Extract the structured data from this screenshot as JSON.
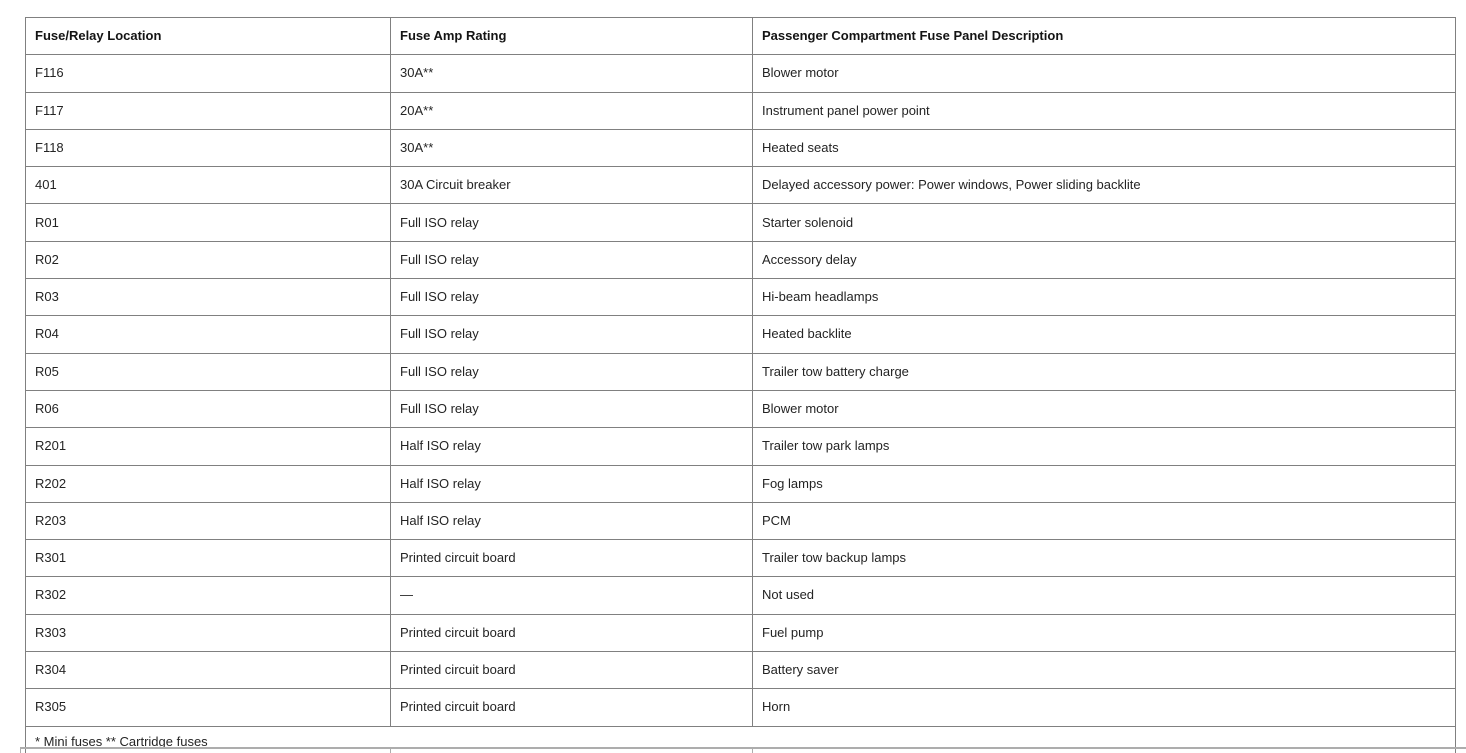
{
  "table": {
    "columns": [
      "Fuse/Relay Location",
      "Fuse Amp Rating",
      "Passenger Compartment Fuse Panel Description"
    ],
    "rows": [
      [
        "F116",
        "30A**",
        "Blower motor"
      ],
      [
        "F117",
        "20A**",
        "Instrument panel power point"
      ],
      [
        "F118",
        "30A**",
        "Heated seats"
      ],
      [
        "401",
        "30A Circuit breaker",
        "Delayed accessory power: Power windows, Power sliding backlite"
      ],
      [
        "R01",
        "Full ISO relay",
        "Starter solenoid"
      ],
      [
        "R02",
        "Full ISO relay",
        "Accessory delay"
      ],
      [
        "R03",
        "Full ISO relay",
        "Hi-beam headlamps"
      ],
      [
        "R04",
        "Full ISO relay",
        "Heated backlite"
      ],
      [
        "R05",
        "Full ISO relay",
        "Trailer tow battery charge"
      ],
      [
        "R06",
        "Full ISO relay",
        "Blower motor"
      ],
      [
        "R201",
        "Half ISO relay",
        "Trailer tow park lamps"
      ],
      [
        "R202",
        "Half ISO relay",
        "Fog lamps"
      ],
      [
        "R203",
        "Half ISO relay",
        "PCM"
      ],
      [
        "R301",
        "Printed circuit board",
        "Trailer tow backup lamps"
      ],
      [
        "R302",
        "—",
        "Not used"
      ],
      [
        "R303",
        "Printed circuit board",
        "Fuel pump"
      ],
      [
        "R304",
        "Printed circuit board",
        "Battery saver"
      ],
      [
        "R305",
        "Printed circuit board",
        "Horn"
      ]
    ],
    "footnote": "* Mini fuses ** Cartridge fuses"
  },
  "colors": {
    "background": "#ffffff",
    "border": "#808080",
    "text": "#242424",
    "header_text": "#141414",
    "next_table_border": "#adadad"
  }
}
